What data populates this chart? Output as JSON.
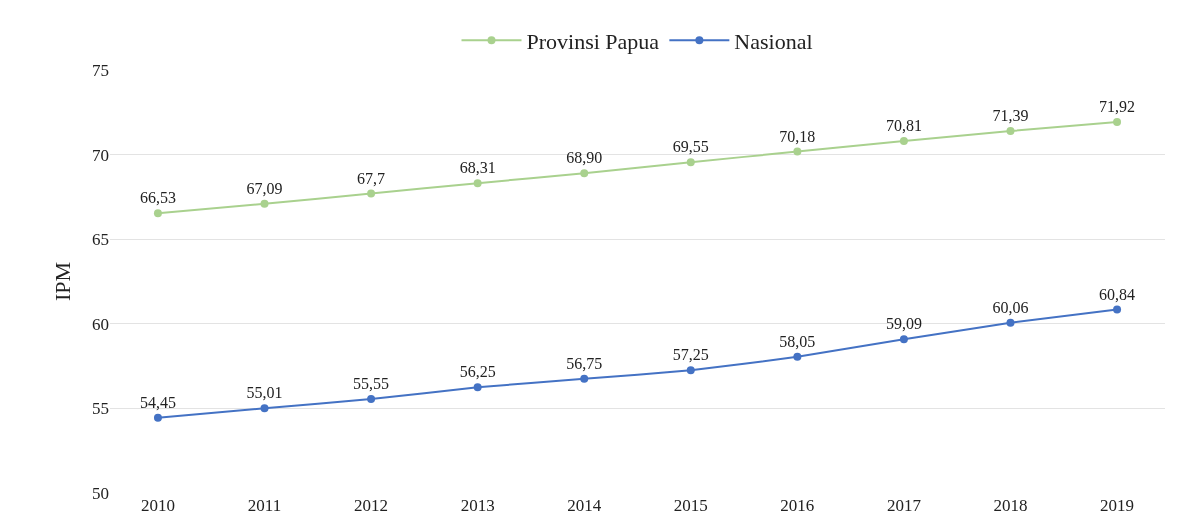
{
  "chart_data": {
    "type": "line",
    "ylabel": "IPM",
    "categories": [
      "2010",
      "2011",
      "2012",
      "2013",
      "2014",
      "2015",
      "2016",
      "2017",
      "2018",
      "2019"
    ],
    "series": [
      {
        "name": "Provinsi Papua",
        "color": "#a9d18e",
        "values": [
          66.53,
          67.09,
          67.7,
          68.31,
          68.9,
          69.55,
          70.18,
          70.81,
          71.39,
          71.92
        ],
        "value_labels": [
          "66,53",
          "67,09",
          "67,7",
          "68,31",
          "68,90",
          "69,55",
          "70,18",
          "70,81",
          "71,39",
          "71,92"
        ]
      },
      {
        "name": "Nasional",
        "color": "#4472c4",
        "values": [
          54.45,
          55.01,
          55.55,
          56.25,
          56.75,
          57.25,
          58.05,
          59.09,
          60.06,
          60.84
        ],
        "value_labels": [
          "54,45",
          "55,01",
          "55,55",
          "56,25",
          "56,75",
          "57,25",
          "58,05",
          "59,09",
          "60,06",
          "60,84"
        ]
      }
    ],
    "ylim": [
      50,
      75
    ],
    "yticks": [
      50,
      55,
      60,
      65,
      70,
      75
    ],
    "grid": "y",
    "legend": "top",
    "marker": "circle",
    "line_style": "solid"
  }
}
